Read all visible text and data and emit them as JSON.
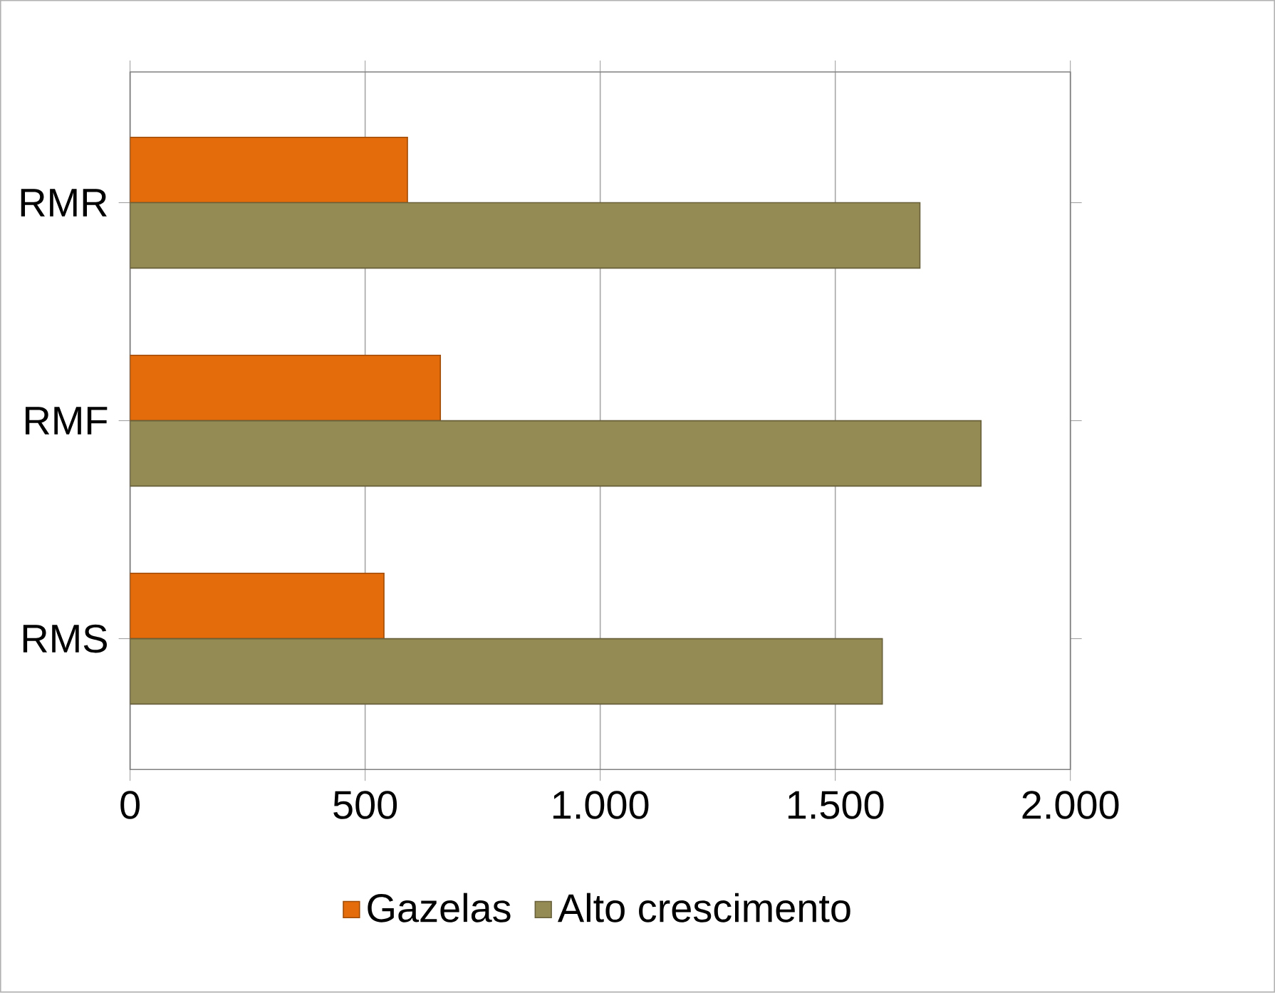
{
  "chart_data": {
    "type": "bar",
    "orientation": "horizontal",
    "categories": [
      "RMR",
      "RMF",
      "RMS"
    ],
    "series": [
      {
        "name": "Gazelas",
        "color": "#e46c0a",
        "values": [
          590,
          660,
          540
        ]
      },
      {
        "name": "Alto crescimento",
        "color": "#948a54",
        "values": [
          1680,
          1810,
          1600
        ]
      }
    ],
    "xlim": [
      0,
      2000
    ],
    "xticks": [
      {
        "value": 0,
        "label": "0"
      },
      {
        "value": 500,
        "label": "500"
      },
      {
        "value": 1000,
        "label": "1.000"
      },
      {
        "value": 1500,
        "label": "1.500"
      },
      {
        "value": 2000,
        "label": "2.000"
      }
    ],
    "grid": "x",
    "legend": "bottom"
  }
}
